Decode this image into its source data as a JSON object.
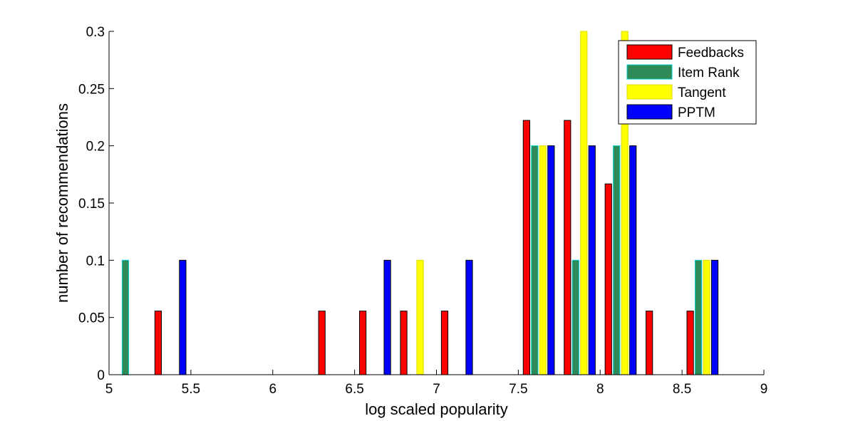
{
  "chart_data": {
    "type": "bar",
    "xlabel": "log scaled popularity",
    "ylabel": "number of recommendations",
    "xlim": [
      5,
      9
    ],
    "ylim": [
      0,
      0.3
    ],
    "xticks": [
      "5",
      "5.5",
      "6",
      "6.5",
      "7",
      "7.5",
      "8",
      "8.5",
      "9"
    ],
    "yticks": [
      "0",
      "0.05",
      "0.1",
      "0.15",
      "0.2",
      "0.25",
      "0.3"
    ],
    "grid": false,
    "legend_position": "top-right",
    "x": [
      5.125,
      5.375,
      5.625,
      5.875,
      6.125,
      6.375,
      6.625,
      6.875,
      7.125,
      7.375,
      7.625,
      7.875,
      8.125,
      8.375,
      8.625,
      8.875
    ],
    "series": [
      {
        "name": "Feedbacks",
        "color": "#ff0000",
        "edge": "#000000",
        "values": [
          0,
          0.0556,
          0,
          0,
          0,
          0.0556,
          0.0556,
          0.0556,
          0.0556,
          0,
          0.2222,
          0.2222,
          0.1667,
          0.0556,
          0.0556,
          0
        ]
      },
      {
        "name": "Item Rank",
        "color": "#2e8b57",
        "edge": "#00cccc",
        "values": [
          0.1,
          0,
          0,
          0,
          0,
          0,
          0,
          0,
          0,
          0,
          0.2,
          0.1,
          0.2,
          0,
          0.1,
          0
        ]
      },
      {
        "name": "Tangent",
        "color": "#ffff00",
        "edge": "#dddd00",
        "values": [
          0,
          0,
          0,
          0,
          0,
          0,
          0,
          0.1,
          0,
          0,
          0.2,
          0.3,
          0.3,
          0,
          0.1,
          0
        ]
      },
      {
        "name": "PPTM",
        "color": "#0000ff",
        "edge": "#000000",
        "values": [
          0,
          0.1,
          0,
          0,
          0,
          0,
          0.1,
          0,
          0.1,
          0,
          0.2,
          0.2,
          0.2,
          0,
          0.1,
          0
        ]
      }
    ]
  }
}
